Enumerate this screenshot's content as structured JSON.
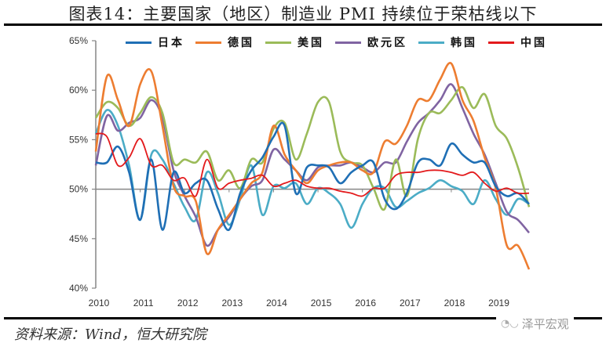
{
  "header": {
    "title": "图表14：主要国家（地区）制造业 PMI 持续位于荣枯线以下"
  },
  "footer": {
    "source": "资料来源：Wind，恒大研究院",
    "watermark": "泽平宏观",
    "watermark_icon": "wechat-icon"
  },
  "chart_data": {
    "type": "line",
    "title": "主要国家（地区）制造业 PMI 持续位于荣枯线以下",
    "xlabel": "",
    "ylabel": "",
    "ylim": [
      40,
      65
    ],
    "yticks": [
      "40%",
      "45%",
      "50%",
      "55%",
      "60%",
      "65%"
    ],
    "ytick_values": [
      40,
      45,
      50,
      55,
      60,
      65
    ],
    "xticks": [
      "2010",
      "2011",
      "2012",
      "2013",
      "2014",
      "2015",
      "2016",
      "2017",
      "2018",
      "2019"
    ],
    "reference_line": 50,
    "grid": false,
    "legend_position": "top",
    "x_start": "2010-01",
    "x_step_months": 3,
    "x": [
      "2010-01",
      "2010-04",
      "2010-07",
      "2010-10",
      "2011-01",
      "2011-04",
      "2011-07",
      "2011-10",
      "2012-01",
      "2012-04",
      "2012-07",
      "2012-10",
      "2013-01",
      "2013-04",
      "2013-07",
      "2013-10",
      "2014-01",
      "2014-04",
      "2014-07",
      "2014-10",
      "2015-01",
      "2015-04",
      "2015-07",
      "2015-10",
      "2016-01",
      "2016-04",
      "2016-07",
      "2016-10",
      "2017-01",
      "2017-04",
      "2017-07",
      "2017-10",
      "2018-01",
      "2018-04",
      "2018-07",
      "2018-10",
      "2019-01",
      "2019-04",
      "2019-07",
      "2019-10"
    ],
    "series": [
      {
        "name": "日本",
        "color": "#1f6fb5",
        "values": [
          52.7,
          52.7,
          54.3,
          51.7,
          46.9,
          53.0,
          45.9,
          51.7,
          49.6,
          50.6,
          50.9,
          48.0,
          45.9,
          49.6,
          51.9,
          53.2,
          55.3,
          56.4,
          49.6,
          52.2,
          52.4,
          52.2,
          50.6,
          51.7,
          52.4,
          52.7,
          49.0,
          48.0,
          49.6,
          52.7,
          53.0,
          52.4,
          54.6,
          53.5,
          52.7,
          52.7,
          50.3,
          49.3,
          49.6,
          48.5
        ]
      },
      {
        "name": "德国",
        "color": "#ed7d31",
        "values": [
          53.8,
          61.4,
          59.0,
          56.4,
          60.6,
          61.9,
          56.4,
          50.3,
          49.3,
          48.8,
          43.5,
          45.9,
          47.4,
          49.0,
          50.6,
          51.7,
          56.4,
          53.5,
          51.9,
          50.6,
          51.9,
          52.4,
          52.7,
          52.7,
          51.9,
          51.7,
          54.8,
          54.6,
          56.4,
          59.0,
          59.0,
          61.1,
          62.7,
          59.0,
          56.9,
          53.2,
          50.1,
          44.3,
          44.3,
          41.9
        ]
      },
      {
        "name": "美国",
        "color": "#9bbb59",
        "values": [
          57.2,
          58.8,
          58.2,
          56.4,
          57.7,
          59.3,
          57.7,
          52.7,
          53.0,
          52.7,
          53.8,
          50.9,
          51.9,
          50.1,
          53.0,
          52.7,
          56.1,
          56.7,
          53.0,
          55.6,
          58.8,
          58.8,
          53.8,
          52.7,
          52.4,
          50.1,
          48.0,
          53.0,
          49.3,
          55.1,
          57.7,
          57.7,
          59.0,
          60.3,
          58.2,
          59.6,
          56.4,
          55.1,
          52.2,
          48.2
        ]
      },
      {
        "name": "欧元区",
        "color": "#8064a2",
        "values": [
          52.4,
          57.4,
          55.9,
          56.7,
          57.2,
          59.0,
          57.2,
          51.9,
          49.3,
          47.2,
          44.3,
          45.9,
          47.2,
          49.0,
          50.3,
          50.9,
          54.0,
          53.0,
          51.9,
          50.9,
          52.2,
          52.4,
          52.4,
          52.7,
          52.2,
          51.7,
          52.7,
          52.7,
          54.8,
          56.7,
          57.7,
          59.0,
          60.6,
          58.2,
          55.6,
          53.5,
          50.6,
          47.7,
          46.9,
          45.6
        ]
      },
      {
        "name": "韩国",
        "color": "#4bacc6",
        "values": [
          55.6,
          58.0,
          56.4,
          52.4,
          46.9,
          53.5,
          53.0,
          50.6,
          48.2,
          46.9,
          51.7,
          49.6,
          46.4,
          49.0,
          52.4,
          47.4,
          50.3,
          50.1,
          50.6,
          48.5,
          50.1,
          49.6,
          48.5,
          46.1,
          48.5,
          50.1,
          50.1,
          48.2,
          48.8,
          49.6,
          50.1,
          50.9,
          50.3,
          49.8,
          48.5,
          50.9,
          49.0,
          47.4,
          49.0,
          48.5
        ]
      },
      {
        "name": "中国",
        "color": "#e31a1c",
        "values": [
          55.6,
          55.3,
          52.4,
          53.2,
          55.1,
          52.4,
          52.4,
          50.9,
          51.1,
          49.3,
          53.0,
          50.1,
          50.6,
          50.9,
          51.1,
          51.4,
          50.3,
          50.6,
          50.9,
          50.3,
          50.1,
          50.1,
          49.8,
          49.6,
          49.3,
          50.1,
          50.1,
          51.4,
          51.7,
          51.7,
          51.9,
          51.9,
          51.7,
          51.4,
          51.7,
          50.6,
          49.8,
          50.1,
          49.6,
          49.6
        ]
      }
    ]
  }
}
